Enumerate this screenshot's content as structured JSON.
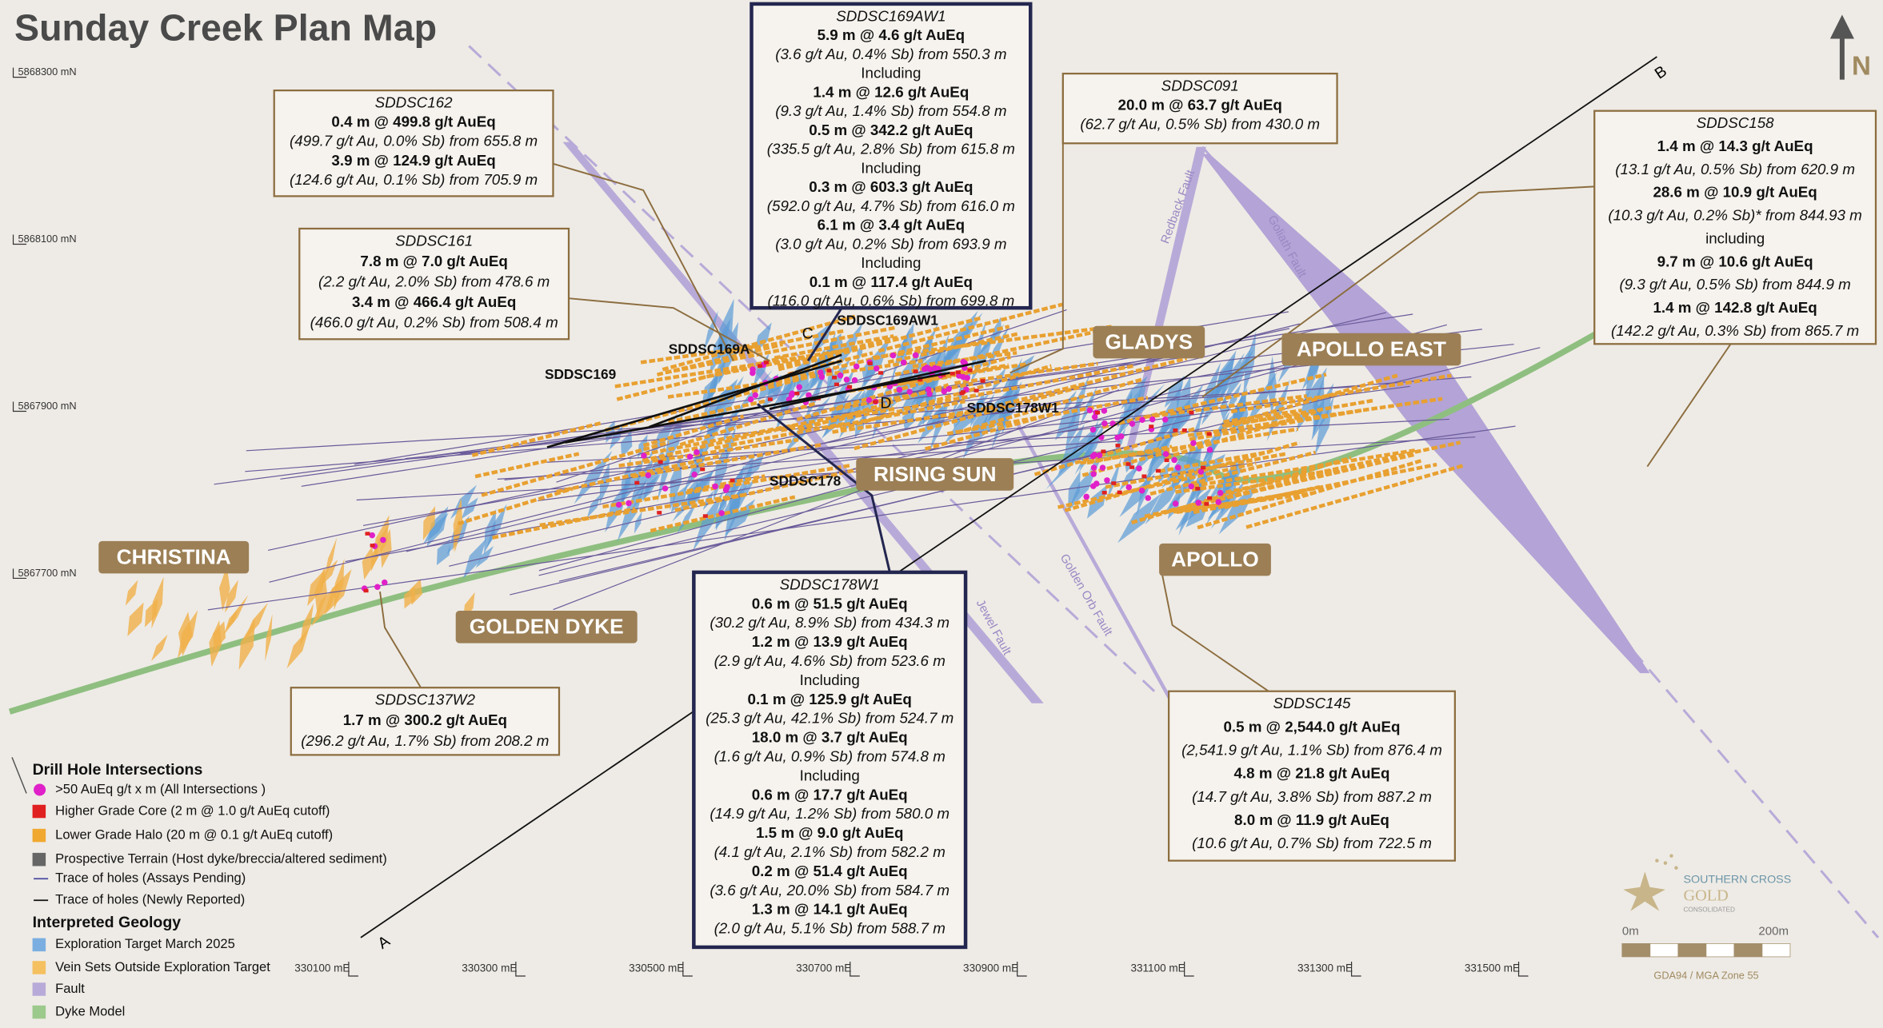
{
  "title": "Sunday Creek Plan Map",
  "north": "N",
  "grid": {
    "northings": [
      "5868300 mN",
      "5868100 mN",
      "5867900 mN",
      "5867700 mN"
    ],
    "eastings": [
      "330100 mE",
      "330300 mE",
      "330500 mE",
      "330700 mE",
      "330900 mE",
      "331100 mE",
      "331300 mE",
      "331500 mE"
    ]
  },
  "section_line": {
    "start": "A",
    "end": "B"
  },
  "faults": [
    "Redback Fault",
    "Goliath Fault",
    "Golden Orb Fault",
    "Jewel Fault"
  ],
  "prospects": [
    "CHRISTINA",
    "GOLDEN DYKE",
    "RISING SUN",
    "GLADYS",
    "APOLLO EAST",
    "APOLLO"
  ],
  "hole_labels": [
    "SDDSC169",
    "SDDSC169A",
    "SDDSC169AW1",
    "SDDSC178W1",
    "SDDSC178"
  ],
  "cross_section_labels": [
    "C",
    "D"
  ],
  "callouts": [
    {
      "hole": "SDDSC169AW1",
      "lines": [
        "5.9 m @ 4.6 g/t AuEq",
        "(3.6 g/t Au, 0.4% Sb) from 550.3 m",
        "Including",
        "1.4 m @ 12.6 g/t AuEq",
        "(9.3 g/t Au, 1.4% Sb) from 554.8 m",
        "0.5 m @ 342.2 g/t AuEq",
        "(335.5 g/t Au, 2.8% Sb) from 615.8 m",
        "Including",
        "0.3 m @ 603.3 g/t AuEq",
        "(592.0 g/t Au, 4.7% Sb) from 616.0 m",
        "6.1 m @ 3.4 g/t AuEq",
        "(3.0 g/t Au, 0.2% Sb) from 693.9 m",
        "Including",
        "0.1 m @ 117.4 g/t AuEq",
        "(116.0 g/t Au, 0.6% Sb) from 699.8 m"
      ]
    },
    {
      "hole": "SDDSC162",
      "lines": [
        "0.4 m @ 499.8 g/t AuEq",
        "(499.7 g/t Au, 0.0% Sb) from 655.8 m",
        "3.9 m @ 124.9 g/t AuEq",
        "(124.6 g/t Au, 0.1% Sb) from 705.9 m"
      ]
    },
    {
      "hole": "SDDSC161",
      "lines": [
        "7.8 m @ 7.0 g/t AuEq",
        "(2.2 g/t Au, 2.0% Sb) from 478.6 m",
        "3.4 m @ 466.4 g/t AuEq",
        "(466.0 g/t Au, 0.2% Sb) from 508.4 m"
      ]
    },
    {
      "hole": "SDDSC091",
      "lines": [
        "20.0 m @ 63.7 g/t AuEq",
        "(62.7 g/t Au, 0.5% Sb) from 430.0 m"
      ]
    },
    {
      "hole": "SDDSC158",
      "lines": [
        "1.4 m @ 14.3 g/t AuEq",
        "(13.1 g/t Au, 0.5% Sb) from 620.9 m",
        "28.6 m @ 10.9 g/t AuEq",
        "(10.3 g/t Au, 0.2% Sb)* from 844.93 m",
        "including",
        "9.7 m @ 10.6 g/t AuEq",
        "(9.3 g/t Au, 0.5% Sb) from 844.9 m",
        "1.4 m @ 142.8 g/t AuEq",
        "(142.2 g/t Au, 0.3% Sb) from 865.7 m"
      ]
    },
    {
      "hole": "SDDSC137W2",
      "lines": [
        "1.7 m @ 300.2 g/t AuEq",
        "(296.2 g/t Au, 1.7% Sb) from 208.2 m"
      ]
    },
    {
      "hole": "SDDSC178W1",
      "lines": [
        "0.6 m @ 51.5 g/t AuEq",
        "(30.2 g/t Au, 8.9% Sb) from 434.3 m",
        "1.2 m @ 13.9 g/t AuEq",
        "(2.9 g/t Au, 4.6% Sb) from 523.6 m",
        "Including",
        "0.1 m @ 125.9 g/t AuEq",
        "(25.3 g/t Au, 42.1% Sb) from 524.7 m",
        "18.0 m @ 3.7 g/t AuEq",
        "(1.6 g/t Au, 0.9% Sb) from 574.8 m",
        "Including",
        "0.6 m @ 17.7 g/t AuEq",
        "(14.9 g/t Au, 1.2% Sb) from 580.0 m",
        "1.5 m @ 9.0 g/t AuEq",
        "(4.1 g/t Au, 2.1% Sb) from 582.2 m",
        "0.2 m @ 51.4 g/t AuEq",
        "(3.6 g/t Au, 20.0% Sb) from 584.7 m",
        "1.3 m @ 14.1 g/t AuEq",
        "(2.0 g/t Au, 5.1% Sb) from 588.7 m"
      ]
    },
    {
      "hole": "SDDSC145",
      "lines": [
        "0.5 m @ 2,544.0 g/t AuEq",
        "(2,541.9 g/t Au, 1.1% Sb) from 876.4 m",
        "4.8 m @ 21.8 g/t AuEq",
        "(14.7 g/t Au, 3.8% Sb) from 887.2 m",
        "8.0 m @ 11.9 g/t AuEq",
        "(10.6 g/t Au, 0.7% Sb) from 722.5 m"
      ]
    }
  ],
  "legend": {
    "intersections": {
      "title": "Drill Hole Intersections",
      "items": [
        ">50 AuEq g/t x m (All Intersections )",
        "Higher Grade Core (2 m @ 1.0 g/t AuEq cutoff)",
        "Lower Grade Halo (20 m @ 0.1 g/t AuEq cutoff)",
        "Prospective Terrain (Host dyke/breccia/altered sediment)",
        "Trace of holes (Assays Pending)",
        "Trace of holes (Newly Reported)"
      ]
    },
    "geology": {
      "title": "Interpreted Geology",
      "items": [
        "Exploration Target March 2025",
        "Vein Sets Outside Exploration Target",
        "Fault",
        "Dyke Model"
      ]
    }
  },
  "scale_bar": {
    "start": "0m",
    "end": "200m",
    "datum": "GDA94 / MGA Zone 55"
  },
  "logo": {
    "name": "SOUTHERN CROSS",
    "sub": "GOLD",
    "tag": "CONSOLIDATED"
  }
}
